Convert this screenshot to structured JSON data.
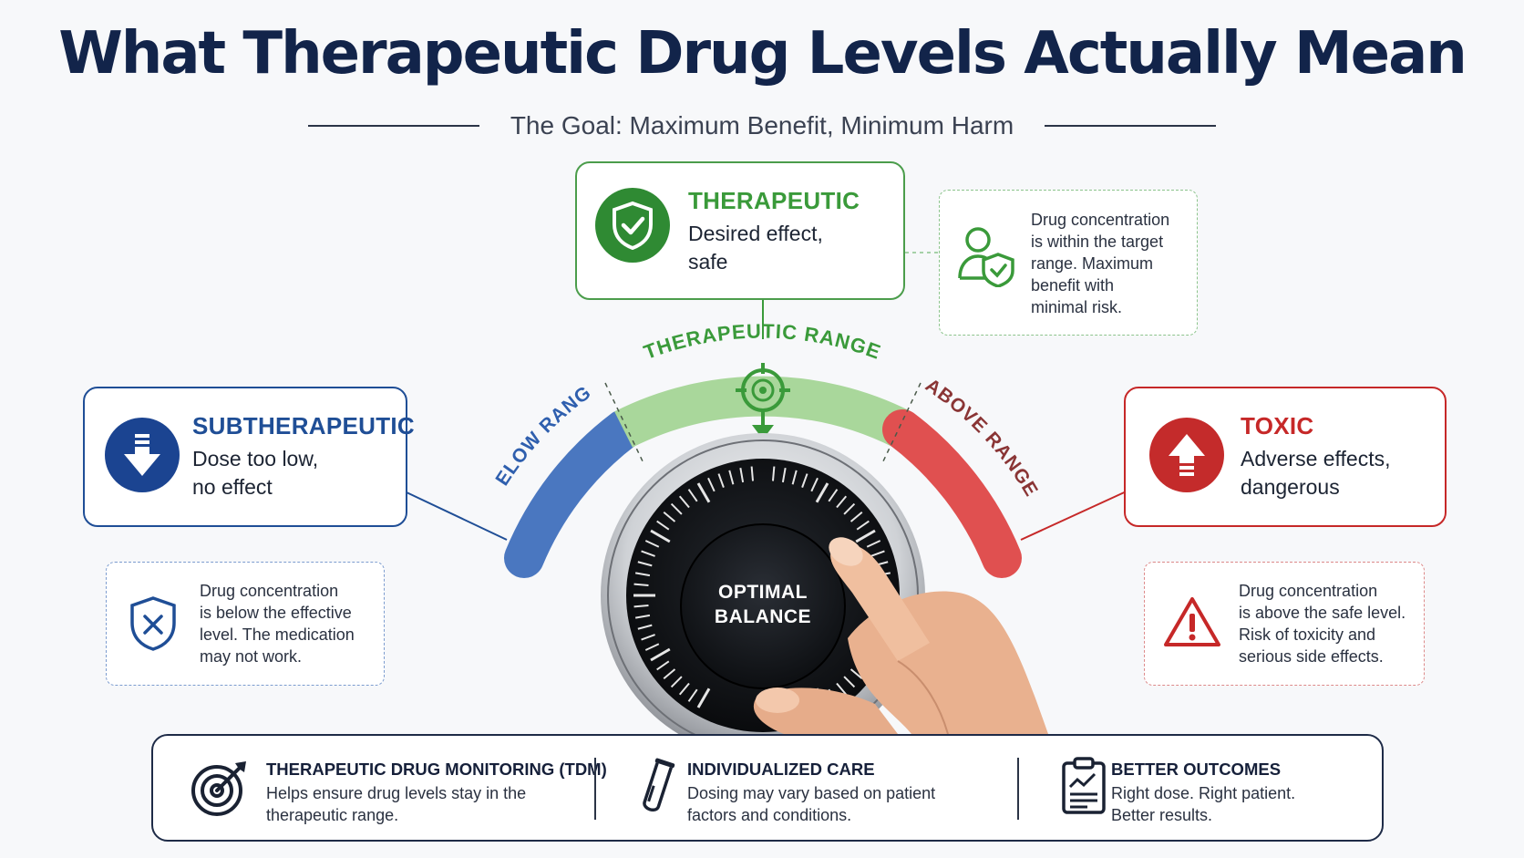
{
  "title": "What Therapeutic Drug Levels Actually Mean",
  "subtitle": "The Goal: Maximum Benefit, Minimum Harm",
  "colors": {
    "navy": "#12244a",
    "green": "#3a9a3a",
    "blue": "#1f4e96",
    "red": "#c62828",
    "arc_blue": "#4a77c0",
    "arc_green": "#a9d79b",
    "arc_red": "#e05050"
  },
  "gauge": {
    "below_label": "BELOW RANGE",
    "therapeutic_label": "THERAPEUTIC RANGE",
    "above_label": "ABOVE RANGE",
    "knob_label_line1": "OPTIMAL",
    "knob_label_line2": "BALANCE"
  },
  "therapeutic": {
    "icon": "shield-check-icon",
    "title": "THERAPEUTIC",
    "desc_line1": "Desired effect,",
    "desc_line2": "safe",
    "info_icon": "person-shield-icon",
    "info": [
      "Drug concentration",
      "is within the target",
      "range. Maximum",
      "benefit with",
      "minimal risk."
    ]
  },
  "subtherapeutic": {
    "icon": "arrow-down-icon",
    "title": "SUBTHERAPEUTIC",
    "desc_line1": "Dose too low,",
    "desc_line2": "no effect",
    "info_icon": "shield-x-icon",
    "info": [
      "Drug concentration",
      "is below the effective",
      "level. The medication",
      "may not work."
    ]
  },
  "toxic": {
    "icon": "arrow-up-icon",
    "title": "TOXIC",
    "desc_line1": "Adverse effects,",
    "desc_line2": "dangerous",
    "info_icon": "warning-triangle-icon",
    "info": [
      "Drug concentration",
      "is above the safe level.",
      "Risk of toxicity and",
      "serious side effects."
    ]
  },
  "features": [
    {
      "icon": "target-icon",
      "title": "THERAPEUTIC DRUG MONITORING (TDM)",
      "desc_line1": "Helps ensure drug levels stay in the",
      "desc_line2": "therapeutic range."
    },
    {
      "icon": "test-tube-icon",
      "title": "INDIVIDUALIZED CARE",
      "desc_line1": "Dosing may vary based on patient",
      "desc_line2": "factors and conditions."
    },
    {
      "icon": "clipboard-chart-icon",
      "title": "BETTER OUTCOMES",
      "desc_line1": "Right dose. Right patient.",
      "desc_line2": "Better results."
    }
  ]
}
